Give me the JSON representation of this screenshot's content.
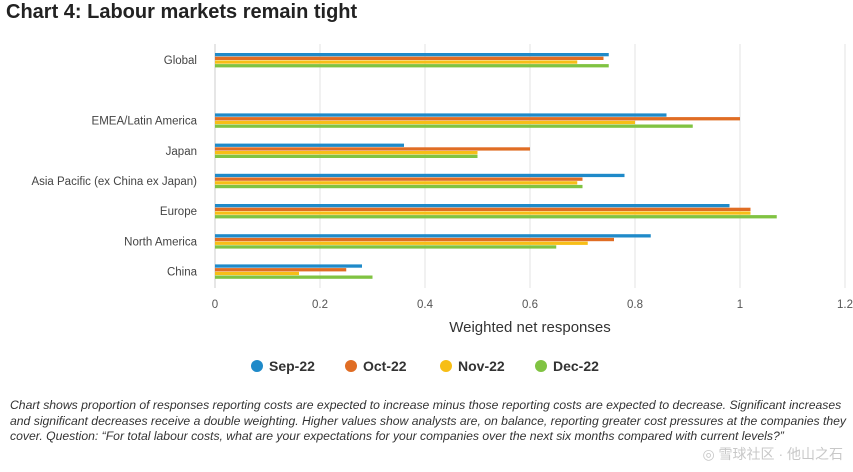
{
  "title": "Chart 4: Labour markets remain tight",
  "footnote": "Chart shows proportion of responses reporting costs are expected to increase minus those reporting costs are expected to decrease. Significant increases and significant decreases receive a double weighting. Higher values show analysts are, on balance, reporting greater cost pressures at the companies they cover. Question: “For total labour costs, what are your expectations for your companies over the next six months compared with current levels?”",
  "watermark": "◎ 雪球社区 · 他山之石",
  "chart_data": {
    "type": "bar",
    "orientation": "horizontal",
    "categories": [
      "Global",
      "",
      "EMEA/Latin America",
      "Japan",
      "Asia Pacific (ex China ex Japan)",
      "Europe",
      "North America",
      "China"
    ],
    "series": [
      {
        "name": "Sep-22",
        "color": "#1f8ac9",
        "values": [
          0.75,
          null,
          0.86,
          0.36,
          0.78,
          0.98,
          0.83,
          0.28
        ]
      },
      {
        "name": "Oct-22",
        "color": "#e06d24",
        "values": [
          0.74,
          null,
          1.0,
          0.6,
          0.7,
          1.02,
          0.76,
          0.25
        ]
      },
      {
        "name": "Nov-22",
        "color": "#f7be16",
        "values": [
          0.69,
          null,
          0.8,
          0.5,
          0.69,
          1.02,
          0.71,
          0.16
        ]
      },
      {
        "name": "Dec-22",
        "color": "#80c342",
        "values": [
          0.75,
          null,
          0.91,
          0.5,
          0.7,
          1.07,
          0.65,
          0.3
        ]
      }
    ],
    "xlabel": "Weighted net responses",
    "ylabel": "",
    "xlim": [
      0,
      1.2
    ],
    "xticks": [
      0,
      0.2,
      0.4,
      0.6,
      0.8,
      1,
      1.2
    ],
    "xtick_labels": [
      "0",
      "0.2",
      "0.4",
      "0.6",
      "0.8",
      "1",
      "1.2"
    ],
    "grid": true,
    "legend_position": "bottom-center"
  }
}
